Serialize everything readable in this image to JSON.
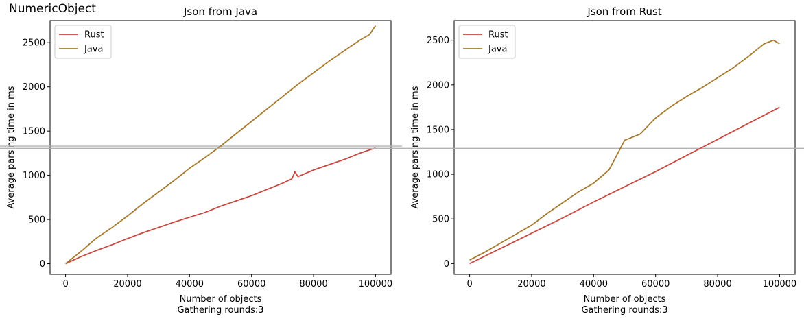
{
  "figure_title": "NumericObject",
  "colors": {
    "rust": "#c9473f",
    "java": "#a57a2d",
    "refline": "#b3b3b3"
  },
  "chart_data": [
    {
      "type": "line",
      "title": "Json from Java",
      "xlabel": "Number of objects",
      "xlabel2": "Gathering rounds:3",
      "ylabel": "Average parsing time in ms",
      "xlim": [
        -5000,
        105000
      ],
      "ylim": [
        -120,
        2750
      ],
      "xticks": [
        0,
        20000,
        40000,
        60000,
        80000,
        100000
      ],
      "yticks": [
        0,
        500,
        1000,
        1500,
        2000,
        2500
      ],
      "legend_position": "top-left",
      "reference_line_y": 1330,
      "series": [
        {
          "name": "Rust",
          "color": "#c9473f",
          "x": [
            0,
            5000,
            10000,
            15000,
            20000,
            25000,
            30000,
            35000,
            40000,
            45000,
            50000,
            55000,
            60000,
            65000,
            70000,
            73000,
            74000,
            75000,
            80000,
            85000,
            90000,
            95000,
            100000
          ],
          "y": [
            0,
            80,
            150,
            215,
            285,
            350,
            410,
            470,
            525,
            580,
            650,
            710,
            770,
            840,
            910,
            960,
            1040,
            985,
            1060,
            1120,
            1180,
            1250,
            1310
          ]
        },
        {
          "name": "Java",
          "color": "#a57a2d",
          "x": [
            0,
            5000,
            10000,
            15000,
            20000,
            25000,
            30000,
            35000,
            40000,
            45000,
            50000,
            55000,
            60000,
            65000,
            70000,
            75000,
            80000,
            85000,
            90000,
            95000,
            98000,
            100000
          ],
          "y": [
            0,
            140,
            290,
            410,
            540,
            680,
            810,
            940,
            1080,
            1200,
            1330,
            1470,
            1610,
            1750,
            1890,
            2030,
            2160,
            2290,
            2410,
            2530,
            2590,
            2690
          ]
        }
      ]
    },
    {
      "type": "line",
      "title": "Json from Rust",
      "xlabel": "Number of objects",
      "xlabel2": "Gathering rounds:3",
      "ylabel": "Average parsing time in ms",
      "xlim": [
        -5000,
        105000
      ],
      "ylim": [
        -120,
        2720
      ],
      "xticks": [
        0,
        20000,
        40000,
        60000,
        80000,
        100000
      ],
      "yticks": [
        0,
        500,
        1000,
        1500,
        2000,
        2500
      ],
      "legend_position": "top-left",
      "reference_line_y": 1290,
      "series": [
        {
          "name": "Rust",
          "color": "#c9473f",
          "x": [
            0,
            10000,
            20000,
            30000,
            40000,
            50000,
            60000,
            70000,
            80000,
            90000,
            100000
          ],
          "y": [
            0,
            170,
            340,
            510,
            690,
            860,
            1030,
            1210,
            1390,
            1570,
            1750
          ]
        },
        {
          "name": "Java",
          "color": "#a57a2d",
          "x": [
            0,
            5000,
            10000,
            15000,
            20000,
            25000,
            30000,
            35000,
            40000,
            45000,
            50000,
            55000,
            60000,
            65000,
            70000,
            75000,
            80000,
            85000,
            90000,
            95000,
            98000,
            100000
          ],
          "y": [
            40,
            130,
            230,
            330,
            430,
            560,
            680,
            800,
            900,
            1050,
            1380,
            1450,
            1630,
            1760,
            1870,
            1970,
            2080,
            2190,
            2320,
            2460,
            2500,
            2460
          ]
        }
      ]
    }
  ]
}
